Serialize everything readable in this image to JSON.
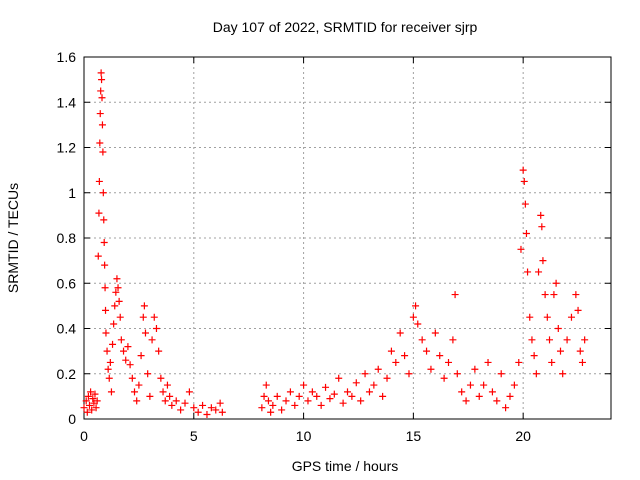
{
  "chart_data": {
    "type": "scatter",
    "title": "Day 107 of 2022, SRMTID for receiver sjrp",
    "xlabel": "GPS time / hours",
    "ylabel": "SRMTID / TECUs",
    "xlim": [
      0,
      24
    ],
    "ylim": [
      0,
      1.6
    ],
    "x_ticks": [
      0,
      5,
      10,
      15,
      20
    ],
    "x_tick_labels": [
      "0",
      "5",
      "10",
      "15",
      "20"
    ],
    "y_ticks": [
      0,
      0.2,
      0.4,
      0.6,
      0.8,
      1,
      1.2,
      1.4,
      1.6
    ],
    "y_tick_labels": [
      "0",
      "0.2",
      "0.4",
      "0.6",
      "0.8",
      "1",
      "1.2",
      "1.4",
      "1.6"
    ],
    "grid": true,
    "marker": "+",
    "color": "#ff0000",
    "series": [
      {
        "name": "sjrp",
        "points": [
          [
            0.0,
            0.05
          ],
          [
            0.1,
            0.08
          ],
          [
            0.15,
            0.03
          ],
          [
            0.2,
            0.1
          ],
          [
            0.25,
            0.06
          ],
          [
            0.3,
            0.12
          ],
          [
            0.35,
            0.04
          ],
          [
            0.4,
            0.09
          ],
          [
            0.45,
            0.07
          ],
          [
            0.5,
            0.11
          ],
          [
            0.55,
            0.05
          ],
          [
            0.6,
            0.08
          ],
          [
            0.65,
            0.72
          ],
          [
            0.68,
            0.91
          ],
          [
            0.7,
            1.05
          ],
          [
            0.72,
            1.22
          ],
          [
            0.74,
            1.35
          ],
          [
            0.76,
            1.45
          ],
          [
            0.78,
            1.53
          ],
          [
            0.8,
            1.5
          ],
          [
            0.82,
            1.42
          ],
          [
            0.84,
            1.3
          ],
          [
            0.86,
            1.18
          ],
          [
            0.88,
            1.0
          ],
          [
            0.9,
            0.88
          ],
          [
            0.92,
            0.78
          ],
          [
            0.94,
            0.68
          ],
          [
            0.96,
            0.58
          ],
          [
            0.98,
            0.48
          ],
          [
            1.0,
            0.38
          ],
          [
            1.05,
            0.3
          ],
          [
            1.1,
            0.22
          ],
          [
            1.15,
            0.18
          ],
          [
            1.2,
            0.25
          ],
          [
            1.25,
            0.12
          ],
          [
            1.3,
            0.33
          ],
          [
            1.35,
            0.42
          ],
          [
            1.4,
            0.5
          ],
          [
            1.45,
            0.56
          ],
          [
            1.5,
            0.62
          ],
          [
            1.55,
            0.58
          ],
          [
            1.6,
            0.52
          ],
          [
            1.65,
            0.45
          ],
          [
            1.7,
            0.35
          ],
          [
            1.8,
            0.3
          ],
          [
            1.9,
            0.26
          ],
          [
            2.0,
            0.32
          ],
          [
            2.1,
            0.24
          ],
          [
            2.2,
            0.18
          ],
          [
            2.3,
            0.12
          ],
          [
            2.4,
            0.08
          ],
          [
            2.5,
            0.15
          ],
          [
            2.6,
            0.28
          ],
          [
            2.7,
            0.45
          ],
          [
            2.75,
            0.5
          ],
          [
            2.8,
            0.38
          ],
          [
            2.9,
            0.2
          ],
          [
            3.0,
            0.1
          ],
          [
            3.1,
            0.35
          ],
          [
            3.2,
            0.45
          ],
          [
            3.3,
            0.4
          ],
          [
            3.4,
            0.3
          ],
          [
            3.5,
            0.18
          ],
          [
            3.6,
            0.12
          ],
          [
            3.7,
            0.08
          ],
          [
            3.8,
            0.15
          ],
          [
            3.9,
            0.1
          ],
          [
            4.0,
            0.06
          ],
          [
            4.2,
            0.08
          ],
          [
            4.4,
            0.04
          ],
          [
            4.6,
            0.07
          ],
          [
            4.8,
            0.12
          ],
          [
            5.0,
            0.05
          ],
          [
            5.2,
            0.03
          ],
          [
            5.4,
            0.06
          ],
          [
            5.6,
            0.02
          ],
          [
            5.8,
            0.05
          ],
          [
            6.0,
            0.04
          ],
          [
            6.2,
            0.07
          ],
          [
            6.3,
            0.03
          ],
          [
            8.1,
            0.05
          ],
          [
            8.2,
            0.1
          ],
          [
            8.3,
            0.15
          ],
          [
            8.4,
            0.08
          ],
          [
            8.5,
            0.03
          ],
          [
            8.6,
            0.06
          ],
          [
            8.8,
            0.1
          ],
          [
            9.0,
            0.04
          ],
          [
            9.2,
            0.08
          ],
          [
            9.4,
            0.12
          ],
          [
            9.6,
            0.06
          ],
          [
            9.8,
            0.1
          ],
          [
            10.0,
            0.15
          ],
          [
            10.2,
            0.08
          ],
          [
            10.4,
            0.12
          ],
          [
            10.6,
            0.1
          ],
          [
            10.8,
            0.06
          ],
          [
            11.0,
            0.14
          ],
          [
            11.2,
            0.09
          ],
          [
            11.4,
            0.11
          ],
          [
            11.6,
            0.18
          ],
          [
            11.8,
            0.07
          ],
          [
            12.0,
            0.12
          ],
          [
            12.2,
            0.1
          ],
          [
            12.4,
            0.16
          ],
          [
            12.6,
            0.08
          ],
          [
            12.8,
            0.2
          ],
          [
            13.0,
            0.12
          ],
          [
            13.2,
            0.15
          ],
          [
            13.4,
            0.22
          ],
          [
            13.6,
            0.1
          ],
          [
            13.8,
            0.18
          ],
          [
            14.0,
            0.3
          ],
          [
            14.2,
            0.25
          ],
          [
            14.4,
            0.38
          ],
          [
            14.6,
            0.28
          ],
          [
            14.8,
            0.2
          ],
          [
            15.0,
            0.45
          ],
          [
            15.1,
            0.5
          ],
          [
            15.2,
            0.42
          ],
          [
            15.4,
            0.35
          ],
          [
            15.6,
            0.3
          ],
          [
            15.8,
            0.22
          ],
          [
            16.0,
            0.38
          ],
          [
            16.2,
            0.28
          ],
          [
            16.4,
            0.18
          ],
          [
            16.6,
            0.25
          ],
          [
            16.8,
            0.35
          ],
          [
            16.9,
            0.55
          ],
          [
            17.0,
            0.2
          ],
          [
            17.2,
            0.12
          ],
          [
            17.4,
            0.08
          ],
          [
            17.6,
            0.15
          ],
          [
            17.8,
            0.22
          ],
          [
            18.0,
            0.1
          ],
          [
            18.2,
            0.15
          ],
          [
            18.4,
            0.25
          ],
          [
            18.6,
            0.12
          ],
          [
            18.8,
            0.08
          ],
          [
            19.0,
            0.2
          ],
          [
            19.2,
            0.05
          ],
          [
            19.4,
            0.1
          ],
          [
            19.6,
            0.15
          ],
          [
            19.8,
            0.25
          ],
          [
            19.9,
            0.75
          ],
          [
            20.0,
            1.1
          ],
          [
            20.05,
            1.05
          ],
          [
            20.1,
            0.95
          ],
          [
            20.15,
            0.82
          ],
          [
            20.2,
            0.65
          ],
          [
            20.3,
            0.45
          ],
          [
            20.4,
            0.35
          ],
          [
            20.5,
            0.28
          ],
          [
            20.6,
            0.2
          ],
          [
            20.7,
            0.65
          ],
          [
            20.8,
            0.9
          ],
          [
            20.85,
            0.85
          ],
          [
            20.9,
            0.7
          ],
          [
            21.0,
            0.55
          ],
          [
            21.1,
            0.45
          ],
          [
            21.2,
            0.35
          ],
          [
            21.3,
            0.25
          ],
          [
            21.4,
            0.55
          ],
          [
            21.5,
            0.6
          ],
          [
            21.6,
            0.4
          ],
          [
            21.7,
            0.3
          ],
          [
            21.8,
            0.2
          ],
          [
            22.0,
            0.35
          ],
          [
            22.2,
            0.45
          ],
          [
            22.4,
            0.55
          ],
          [
            22.5,
            0.48
          ],
          [
            22.6,
            0.3
          ],
          [
            22.7,
            0.25
          ],
          [
            22.8,
            0.35
          ]
        ]
      }
    ]
  }
}
